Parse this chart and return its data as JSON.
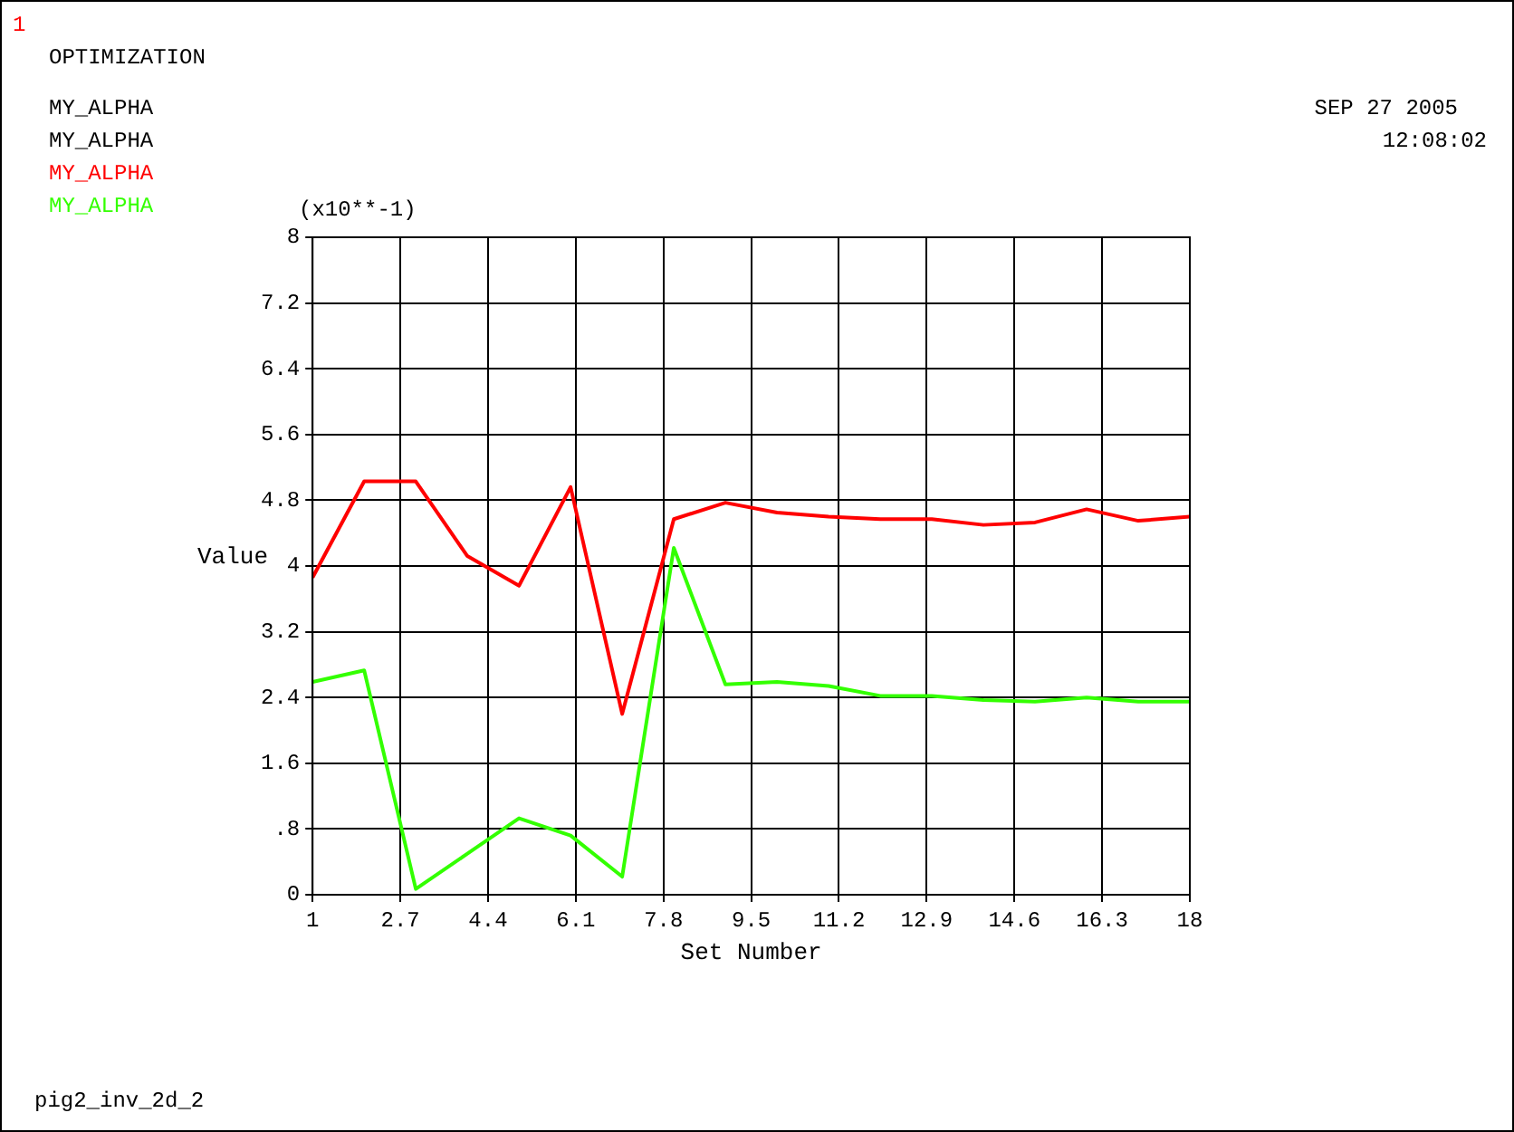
{
  "chart_data": {
    "type": "line",
    "title": "OPTIMIZATION",
    "xlabel": "Set Number",
    "ylabel": "Value",
    "annotations": [
      "1",
      "SEP 27 2005",
      "12:08:02",
      "MY_ALPHA",
      "MY_ALPHA",
      "(x10**-1)",
      "pig2_inv_2d_2"
    ],
    "x": [
      1,
      2,
      3,
      4,
      5,
      6,
      7,
      8,
      9,
      10,
      11,
      12,
      13,
      14,
      15,
      16,
      17,
      18
    ],
    "series": [
      {
        "name": "MY_ALPHA",
        "color": "#ff0000",
        "values": [
          3.86,
          5.03,
          5.03,
          4.12,
          3.76,
          4.96,
          2.2,
          4.57,
          4.77,
          4.65,
          4.6,
          4.57,
          4.57,
          4.5,
          4.53,
          4.69,
          4.55,
          4.6
        ]
      },
      {
        "name": "MY_ALPHA",
        "color": "#33ff00",
        "values": [
          2.59,
          2.73,
          0.07,
          0.5,
          0.93,
          0.72,
          0.22,
          4.22,
          2.56,
          2.59,
          2.54,
          2.42,
          2.42,
          2.37,
          2.35,
          2.4,
          2.35,
          2.35
        ]
      }
    ],
    "xlim": [
      1,
      18
    ],
    "xticks": [
      1,
      2.7,
      4.4,
      6.1,
      7.8,
      9.5,
      11.2,
      12.9,
      14.6,
      16.3,
      18
    ],
    "ylim": [
      0,
      8
    ],
    "yticks": [
      0,
      {
        "value": 0.8,
        "label": ".8"
      },
      1.6,
      2.4,
      3.2,
      4,
      4.8,
      5.6,
      6.4,
      7.2,
      8
    ],
    "grid": true,
    "legend": "top left",
    "marker": "none",
    "line_style": "solid"
  }
}
